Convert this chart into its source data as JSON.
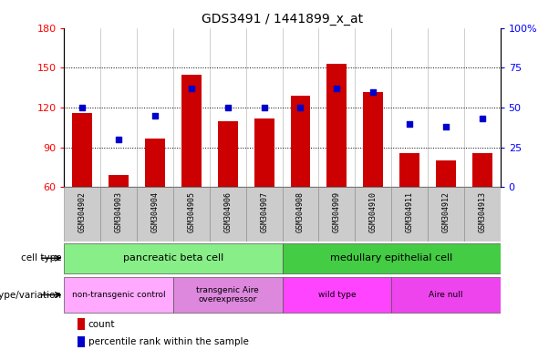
{
  "title": "GDS3491 / 1441899_x_at",
  "samples": [
    "GSM304902",
    "GSM304903",
    "GSM304904",
    "GSM304905",
    "GSM304906",
    "GSM304907",
    "GSM304908",
    "GSM304909",
    "GSM304910",
    "GSM304911",
    "GSM304912",
    "GSM304913"
  ],
  "counts": [
    116,
    69,
    97,
    145,
    110,
    112,
    129,
    153,
    132,
    86,
    80,
    86
  ],
  "percentile_ranks": [
    50,
    30,
    45,
    62,
    50,
    50,
    50,
    62,
    60,
    40,
    38,
    43
  ],
  "ymin": 60,
  "ymax": 180,
  "yticks": [
    60,
    90,
    120,
    150,
    180
  ],
  "y2min": 0,
  "y2max": 100,
  "y2ticks": [
    0,
    25,
    50,
    75,
    100
  ],
  "y2ticklabels": [
    "0",
    "25",
    "50",
    "75",
    "100%"
  ],
  "bar_color": "#cc0000",
  "dot_color": "#0000cc",
  "bar_bottom": 60,
  "cell_type_groups": [
    {
      "label": "pancreatic beta cell",
      "start": 0,
      "end": 6,
      "color": "#88ee88"
    },
    {
      "label": "medullary epithelial cell",
      "start": 6,
      "end": 12,
      "color": "#44cc44"
    }
  ],
  "genotype_groups": [
    {
      "label": "non-transgenic control",
      "start": 0,
      "end": 3,
      "color": "#ffaaff"
    },
    {
      "label": "transgenic Aire\noverexpressor",
      "start": 3,
      "end": 6,
      "color": "#dd88dd"
    },
    {
      "label": "wild type",
      "start": 6,
      "end": 9,
      "color": "#ff44ff"
    },
    {
      "label": "Aire null",
      "start": 9,
      "end": 12,
      "color": "#ee44ee"
    }
  ],
  "legend_count_label": "count",
  "legend_pct_label": "percentile rank within the sample",
  "cell_type_label": "cell type",
  "genotype_label": "genotype/variation",
  "xticklabel_bg": "#cccccc",
  "col_sep_color": "#888888",
  "gridline_color": "#000000"
}
